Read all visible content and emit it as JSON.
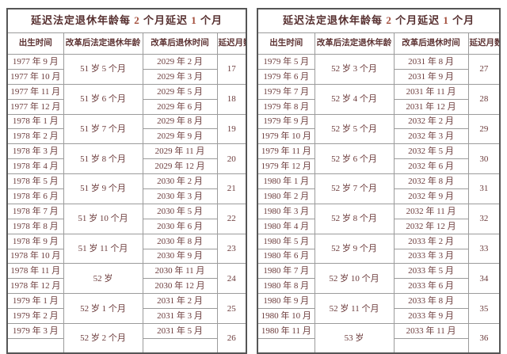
{
  "colors": {
    "text": "#6b3b3b",
    "title_text": "#573030",
    "accent_digit": "#a34e3c",
    "inner_border": "#9b9b9b",
    "outer_border": "#565656",
    "background": "#ffffff"
  },
  "columns": [
    "出生时间",
    "改革后法定退休年龄",
    "改革后退休时间",
    "延迟月数"
  ],
  "header_title": {
    "full": "延迟法定退休年龄每 2 个月延迟 1 个月",
    "parts": [
      {
        "text": "延迟法定退休年龄每 ",
        "accent": false
      },
      {
        "text": "2",
        "accent": true
      },
      {
        "text": " 个月延迟 ",
        "accent": false
      },
      {
        "text": "1",
        "accent": true
      },
      {
        "text": " 个月",
        "accent": false
      }
    ]
  },
  "tables": [
    {
      "side": "left",
      "groups": [
        {
          "births": [
            "1977 年 9 月",
            "1977 年 10 月"
          ],
          "age": "51 岁 5 个月",
          "retirements": [
            "2029 年 2 月",
            "2029 年 3 月"
          ],
          "delay": "17"
        },
        {
          "births": [
            "1977 年 11 月",
            "1977 年 12 月"
          ],
          "age": "51 岁 6 个月",
          "retirements": [
            "2029 年 5 月",
            "2029 年 6 月"
          ],
          "delay": "18"
        },
        {
          "births": [
            "1978 年 1 月",
            "1978 年 2 月"
          ],
          "age": "51 岁 7 个月",
          "retirements": [
            "2029 年 8 月",
            "2029 年 9 月"
          ],
          "delay": "19"
        },
        {
          "births": [
            "1978 年 3 月",
            "1978 年 4 月"
          ],
          "age": "51 岁 8 个月",
          "retirements": [
            "2029 年 11 月",
            "2029 年 12 月"
          ],
          "delay": "20"
        },
        {
          "births": [
            "1978 年 5 月",
            "1978 年 6 月"
          ],
          "age": "51 岁 9 个月",
          "retirements": [
            "2030 年 2 月",
            "2030 年 3 月"
          ],
          "delay": "21"
        },
        {
          "births": [
            "1978 年 7 月",
            "1978 年 8 月"
          ],
          "age": "51 岁 10 个月",
          "retirements": [
            "2030 年 5 月",
            "2030 年 6 月"
          ],
          "delay": "22"
        },
        {
          "births": [
            "1978 年 9 月",
            "1978 年 10 月"
          ],
          "age": "51 岁 11 个月",
          "retirements": [
            "2030 年 8 月",
            "2030 年 9 月"
          ],
          "delay": "23"
        },
        {
          "births": [
            "1978 年 11 月",
            "1978 年 12 月"
          ],
          "age": "52 岁",
          "retirements": [
            "2030 年 11 月",
            "2030 年 12 月"
          ],
          "delay": "24"
        },
        {
          "births": [
            "1979 年 1 月",
            "1979 年 2 月"
          ],
          "age": "52 岁 1 个月",
          "retirements": [
            "2031 年 2 月",
            "2031 年 3 月"
          ],
          "delay": "25"
        },
        {
          "births": [
            "1979 年 3 月"
          ],
          "age": "52 岁 2 个月",
          "retirements": [
            "2031 年 5 月"
          ],
          "delay": "26"
        }
      ]
    },
    {
      "side": "right",
      "groups": [
        {
          "births": [
            "1979 年 5 月",
            "1979 年 6 月"
          ],
          "age": "52 岁 3 个月",
          "retirements": [
            "2031 年 8 月",
            "2031 年 9 月"
          ],
          "delay": "27"
        },
        {
          "births": [
            "1979 年 7 月",
            "1979 年 8 月"
          ],
          "age": "52 岁 4 个月",
          "retirements": [
            "2031 年 11 月",
            "2031 年 12 月"
          ],
          "delay": "28"
        },
        {
          "births": [
            "1979 年 9 月",
            "1979 年 10 月"
          ],
          "age": "52 岁 5 个月",
          "retirements": [
            "2032 年 2 月",
            "2032 年 3 月"
          ],
          "delay": "29"
        },
        {
          "births": [
            "1979 年 11 月",
            "1979 年 12 月"
          ],
          "age": "52 岁 6 个月",
          "retirements": [
            "2032 年 5 月",
            "2032 年 6 月"
          ],
          "delay": "30"
        },
        {
          "births": [
            "1980 年 1 月",
            "1980 年 2 月"
          ],
          "age": "52 岁 7 个月",
          "retirements": [
            "2032 年 8 月",
            "2032 年 9 月"
          ],
          "delay": "31"
        },
        {
          "births": [
            "1980 年 3 月",
            "1980 年 4 月"
          ],
          "age": "52 岁 8 个月",
          "retirements": [
            "2032 年 11 月",
            "2032 年 12 月"
          ],
          "delay": "32"
        },
        {
          "births": [
            "1980 年 5 月",
            "1980 年 6 月"
          ],
          "age": "52 岁 9 个月",
          "retirements": [
            "2033 年 2 月",
            "2033 年 3 月"
          ],
          "delay": "33"
        },
        {
          "births": [
            "1980 年 7 月",
            "1980 年 8 月"
          ],
          "age": "52 岁 10 个月",
          "retirements": [
            "2033 年 5 月",
            "2033 年 6 月"
          ],
          "delay": "34"
        },
        {
          "births": [
            "1980 年 9 月",
            "1980 年 10 月"
          ],
          "age": "52 岁 11 个月",
          "retirements": [
            "2033 年 8 月",
            "2033 年 9 月"
          ],
          "delay": "35"
        },
        {
          "births": [
            "1980 年 11 月"
          ],
          "age": "53 岁",
          "retirements": [
            "2033 年 11 月"
          ],
          "delay": "36"
        }
      ]
    }
  ]
}
